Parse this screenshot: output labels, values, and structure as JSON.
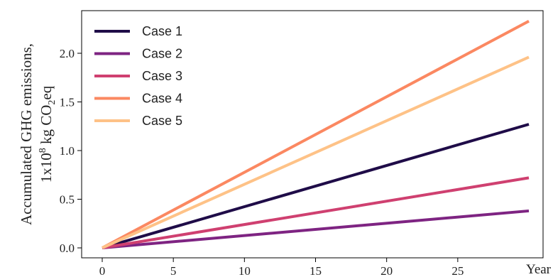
{
  "chart_data": {
    "type": "line",
    "ylabel_line1": "Accumulated GHG emissions,",
    "ylabel_line2_prefix": "1x10",
    "ylabel_line2_exp": "8",
    "ylabel_line2_mid": " kg CO",
    "ylabel_line2_sub": "2",
    "ylabel_line2_suffix": "eq",
    "xlabel": "Year",
    "xlim": [
      0,
      30
    ],
    "ylim": [
      0,
      2.4
    ],
    "x_ticks": [
      0,
      5,
      10,
      15,
      20,
      25
    ],
    "x_tick_labels": [
      "0",
      "5",
      "10",
      "15",
      "20",
      "25"
    ],
    "y_ticks": [
      0.0,
      0.5,
      1.0,
      1.5,
      2.0
    ],
    "y_tick_labels": [
      "0.0",
      "0.5",
      "1.0",
      "1.5",
      "2.0"
    ],
    "legend_position": "top-left",
    "grid": false,
    "series": [
      {
        "name": "Case 1",
        "color": "#1f0c48",
        "x": [
          0,
          30
        ],
        "y": [
          0,
          1.27
        ]
      },
      {
        "name": "Case 2",
        "color": "#7e2482",
        "x": [
          0,
          30
        ],
        "y": [
          0,
          0.38
        ]
      },
      {
        "name": "Case 3",
        "color": "#cf4070",
        "x": [
          0,
          30
        ],
        "y": [
          0,
          0.72
        ]
      },
      {
        "name": "Case 4",
        "color": "#fb8861",
        "x": [
          0,
          30
        ],
        "y": [
          0,
          2.33
        ]
      },
      {
        "name": "Case 5",
        "color": "#fec287",
        "x": [
          0,
          30
        ],
        "y": [
          0,
          1.96
        ]
      }
    ]
  }
}
